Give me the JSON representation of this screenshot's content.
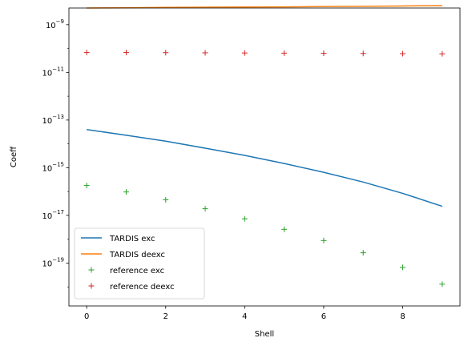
{
  "chart_data": {
    "type": "line",
    "xlabel": "Shell",
    "ylabel": "Coeff",
    "yscale": "log",
    "xlim": [
      -0.45,
      9.45
    ],
    "ylim_log10": [
      -20.8,
      -8.3
    ],
    "x_ticks": [
      0,
      2,
      4,
      6,
      8
    ],
    "y_ticks": [
      {
        "exp": -19,
        "label": "10",
        "sup": "−19"
      },
      {
        "exp": -17,
        "label": "10",
        "sup": "−17"
      },
      {
        "exp": -15,
        "label": "10",
        "sup": "−15"
      },
      {
        "exp": -13,
        "label": "10",
        "sup": "−13"
      },
      {
        "exp": -11,
        "label": "10",
        "sup": "−11"
      },
      {
        "exp": -9,
        "label": "10",
        "sup": "−9"
      }
    ],
    "grid": false,
    "legend_position": "lower-left",
    "series": [
      {
        "name": "TARDIS exc",
        "style": "line",
        "color": "#1f77b4",
        "x": [
          0,
          1,
          2,
          3,
          4,
          5,
          6,
          7,
          8,
          9
        ],
        "y": [
          4e-14,
          2.3e-14,
          1.3e-14,
          6.6e-15,
          3.3e-15,
          1.5e-15,
          6.4e-16,
          2.5e-16,
          8.4e-17,
          2.4e-17
        ]
      },
      {
        "name": "TARDIS deexc",
        "style": "line",
        "color": "#ff7f0e",
        "x": [
          0,
          1,
          2,
          3,
          4,
          5,
          6,
          7,
          8,
          9
        ],
        "y": [
          5e-09,
          5.1e-09,
          5.3e-09,
          5.4e-09,
          5.5e-09,
          5.6e-09,
          5.8e-09,
          5.9e-09,
          6.1e-09,
          6.3e-09
        ]
      },
      {
        "name": "reference exc",
        "style": "marker",
        "color": "#2ca02c",
        "x": [
          0,
          1,
          2,
          3,
          4,
          5,
          6,
          7,
          8,
          9
        ],
        "y": [
          1.8e-16,
          9.6e-17,
          4.5e-17,
          1.9e-17,
          7.2e-18,
          2.6e-18,
          8.8e-19,
          2.7e-19,
          6.6e-20,
          1.3e-20
        ]
      },
      {
        "name": "reference deexc",
        "style": "marker",
        "color": "#d62728",
        "x": [
          0,
          1,
          2,
          3,
          4,
          5,
          6,
          7,
          8,
          9
        ],
        "y": [
          6.8e-11,
          6.8e-11,
          6.7e-11,
          6.6e-11,
          6.5e-11,
          6.4e-11,
          6.3e-11,
          6.2e-11,
          6.1e-11,
          6e-11
        ]
      }
    ]
  }
}
